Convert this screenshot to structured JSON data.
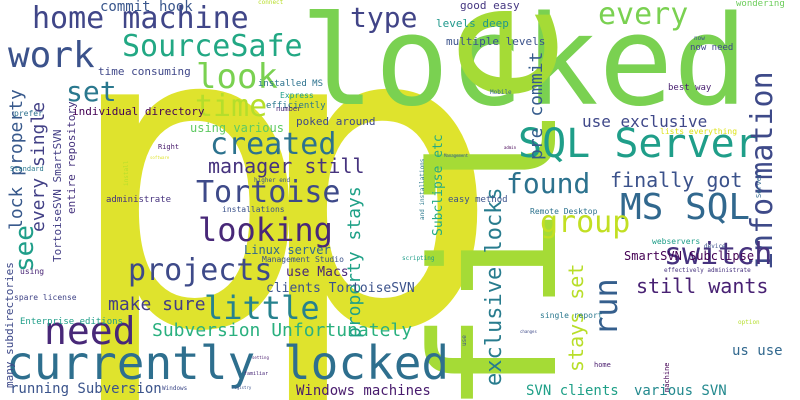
{
  "words": [
    {
      "text": "p",
      "color": "#dfe32d"
    },
    {
      "text": "p",
      "color": "#dfe32d"
    },
    {
      "text": "locked",
      "color": "#7ad151"
    },
    {
      "text": "file",
      "color": "#a5db36"
    },
    {
      "text": "currently locked",
      "color": "#2e6f8e"
    },
    {
      "text": "home machine",
      "color": "#404688"
    },
    {
      "text": "SourceSafe",
      "color": "#22a884"
    },
    {
      "text": "work",
      "color": "#3b528b"
    },
    {
      "text": "look",
      "color": "#7ad151"
    },
    {
      "text": "time",
      "color": "#b5de2b"
    },
    {
      "text": "set",
      "color": "#2a788e"
    },
    {
      "text": "type",
      "color": "#414487"
    },
    {
      "text": "every",
      "color": "#7ad151"
    },
    {
      "text": "SQL Server",
      "color": "#1f9e89"
    },
    {
      "text": "MS SQL",
      "color": "#31688e"
    },
    {
      "text": "information",
      "color": "#3e4a89"
    },
    {
      "text": "found",
      "color": "#2c728e"
    },
    {
      "text": "finally got",
      "color": "#3b528b"
    },
    {
      "text": "created",
      "color": "#2c728e"
    },
    {
      "text": "Tortoise",
      "color": "#3e4a89"
    },
    {
      "text": "looking",
      "color": "#482878"
    },
    {
      "text": "group",
      "color": "#c2df23"
    },
    {
      "text": "switch",
      "color": "#46327e"
    },
    {
      "text": "run",
      "color": "#355f8d"
    },
    {
      "text": "still wants",
      "color": "#482173"
    },
    {
      "text": "projects",
      "color": "#3e4a89"
    },
    {
      "text": "little",
      "color": "#26828e"
    },
    {
      "text": "need",
      "color": "#482878"
    },
    {
      "text": "see",
      "color": "#1f9e89"
    },
    {
      "text": "manager still",
      "color": "#46337e"
    },
    {
      "text": "make sure",
      "color": "#433e85"
    },
    {
      "text": "Subversion Unfortunately",
      "color": "#2ab07f"
    },
    {
      "text": "exclusive locks",
      "color": "#287c8e"
    },
    {
      "text": "stays set",
      "color": "#b8de29"
    },
    {
      "text": "use exclusive",
      "color": "#3f4889"
    },
    {
      "text": "pre commit",
      "color": "#365c8d"
    },
    {
      "text": "property stays",
      "color": "#1fa187"
    },
    {
      "text": "lock property",
      "color": "#38598c"
    },
    {
      "text": "every single",
      "color": "#424086"
    },
    {
      "text": "commit hook",
      "color": "#39568c"
    },
    {
      "text": "running Subversion",
      "color": "#3a538b"
    },
    {
      "text": "Windows machines",
      "color": "#481b6d"
    },
    {
      "text": "SVN clients",
      "color": "#1fa088"
    },
    {
      "text": "various SVN",
      "color": "#23898e"
    },
    {
      "text": "us use",
      "color": "#31688e"
    },
    {
      "text": "SmartSVN Subclipse",
      "color": "#440154"
    },
    {
      "text": "use Macs",
      "color": "#482677"
    },
    {
      "text": "clients TortoiseSVN",
      "color": "#3b528b"
    },
    {
      "text": "Linux server",
      "color": "#31688e"
    },
    {
      "text": "using various",
      "color": "#5ec962"
    },
    {
      "text": "poked around",
      "color": "#3e4a89"
    },
    {
      "text": "time consuming",
      "color": "#3f4788"
    },
    {
      "text": "individual directory",
      "color": "#440154"
    },
    {
      "text": "installed MS",
      "color": "#2c728e"
    },
    {
      "text": "efficiently",
      "color": "#2a788e"
    },
    {
      "text": "TortoiseSVN SmartSVN",
      "color": "#433e85"
    },
    {
      "text": "entire repository",
      "color": "#46337e"
    },
    {
      "text": "many subdirectories",
      "color": "#3e4989"
    },
    {
      "text": "Enterprise editions",
      "color": "#1f9e89"
    },
    {
      "text": "spare license",
      "color": "#414487"
    },
    {
      "text": "using",
      "color": "#482475"
    },
    {
      "text": "prefer",
      "color": "#2d708e"
    },
    {
      "text": "administrate",
      "color": "#46327e"
    },
    {
      "text": "installations",
      "color": "#3b528b"
    },
    {
      "text": "Management Studio",
      "color": "#3b528b"
    },
    {
      "text": "Subclipse etc",
      "color": "#25ab82"
    },
    {
      "text": "good easy",
      "color": "#453781"
    },
    {
      "text": "multiple levels",
      "color": "#3b528b"
    },
    {
      "text": "levels deep",
      "color": "#1f988b"
    },
    {
      "text": "now need",
      "color": "#3f4788"
    },
    {
      "text": "best way",
      "color": "#481f70"
    },
    {
      "text": "wondering",
      "color": "#6ccd5a"
    },
    {
      "text": "lists everything",
      "color": "#dde318"
    },
    {
      "text": "easy method",
      "color": "#3b528b"
    },
    {
      "text": "Remote Desktop",
      "color": "#2c728e"
    },
    {
      "text": "webservers",
      "color": "#1f9e89"
    },
    {
      "text": "single report",
      "color": "#2a788e"
    },
    {
      "text": "Express",
      "color": "#1f9e89"
    },
    {
      "text": "Mobile",
      "color": "#31688e"
    },
    {
      "text": "number",
      "color": "#482878"
    },
    {
      "text": "Right",
      "color": "#481a6c"
    },
    {
      "text": "Standard",
      "color": "#2a788e"
    },
    {
      "text": "connect",
      "color": "#b8de29"
    },
    {
      "text": "now",
      "color": "#3b528b"
    },
    {
      "text": "higher end",
      "color": "#3b528b"
    },
    {
      "text": "option",
      "color": "#b5de2b"
    },
    {
      "text": "home",
      "color": "#481b6d"
    },
    {
      "text": "machine",
      "color": "#440154"
    },
    {
      "text": "effectively administrate",
      "color": "#46327e"
    },
    {
      "text": "Windows",
      "color": "#3e4a89"
    },
    {
      "text": "familiar",
      "color": "#482878"
    },
    {
      "text": "Server",
      "color": "#31688e"
    },
    {
      "text": "device",
      "color": "#3b528b"
    },
    {
      "text": "scripting",
      "color": "#1f9e89"
    },
    {
      "text": "install",
      "color": "#b5de2b"
    },
    {
      "text": "use",
      "color": "#3b528b"
    },
    {
      "text": "and installations",
      "color": "#2a788e"
    },
    {
      "text": "Management",
      "color": "#3b528b"
    },
    {
      "text": "software",
      "color": "#dfe32d"
    },
    {
      "text": "registry",
      "color": "#3b528b"
    },
    {
      "text": "setting",
      "color": "#481b6d"
    },
    {
      "text": "changes",
      "color": "#3e4a89"
    },
    {
      "text": "admin",
      "color": "#440154"
    }
  ]
}
